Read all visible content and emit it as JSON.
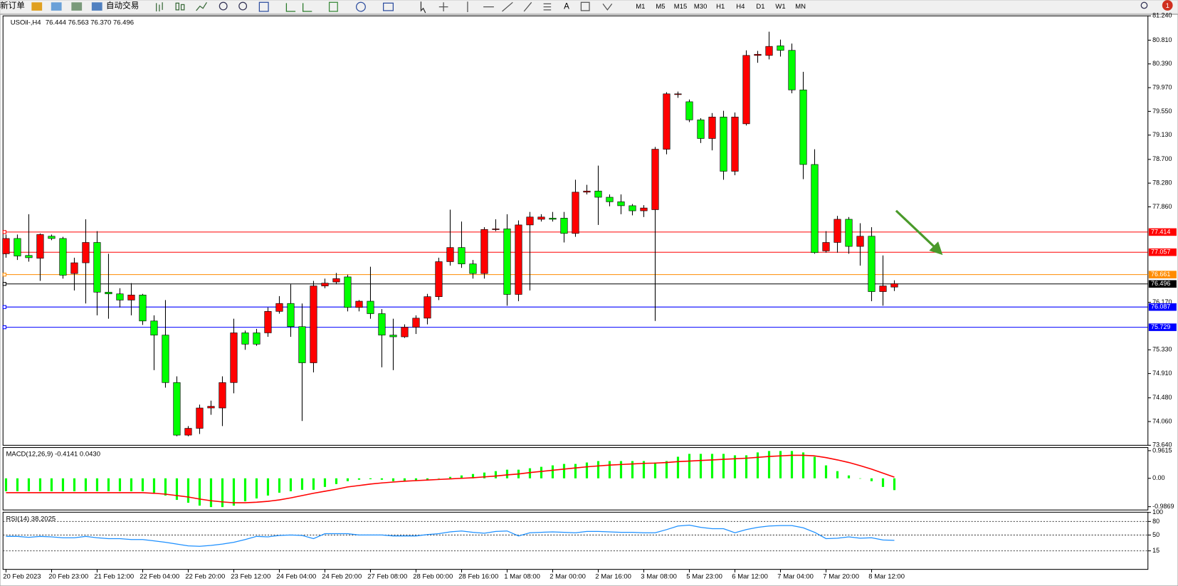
{
  "toolbar": {
    "new_order": "新订单",
    "auto_trade": "自动交易",
    "text_tool": "A",
    "timeframes": [
      "M1",
      "M5",
      "M15",
      "M30",
      "H1",
      "H4",
      "D1",
      "W1",
      "MN"
    ],
    "badge": 1
  },
  "chart_data": [
    {
      "type": "candlestick",
      "title": "USOil-,H4",
      "subtitle": "76.444 76.563 76.370 76.496",
      "categories": [
        "20 Feb 2023",
        null,
        null,
        null,
        "20 Feb 23:00",
        null,
        null,
        null,
        "21 Feb 12:00",
        null,
        null,
        null,
        "22 Feb 04:00",
        null,
        null,
        null,
        "22 Feb 20:00",
        null,
        null,
        null,
        "23 Feb 12:00",
        null,
        null,
        null,
        "24 Feb 04:00",
        null,
        null,
        null,
        "24 Feb 20:00",
        null,
        null,
        null,
        "27 Feb 08:00",
        null,
        null,
        null,
        "28 Feb 00:00",
        null,
        null,
        null,
        "28 Feb 16:00",
        null,
        null,
        null,
        "1 Mar 08:00",
        null,
        null,
        null,
        "2 Mar 00:00",
        null,
        null,
        null,
        "2 Mar 16:00",
        null,
        null,
        null,
        "3 Mar 08:00",
        null,
        null,
        null,
        "5 Mar 23:00",
        null,
        null,
        null,
        "6 Mar 12:00",
        null,
        null,
        null,
        "7 Mar 04:00",
        null,
        null,
        null,
        "7 Mar 20:00",
        null,
        null,
        null,
        "8 Mar 12:00",
        null,
        null
      ],
      "open": [
        77.03,
        77.3,
        77.0,
        76.95,
        77.34,
        77.3,
        76.68,
        76.87,
        77.23,
        76.35,
        76.32,
        76.21,
        76.3,
        75.84,
        75.59,
        74.75,
        73.82,
        73.94,
        74.3,
        74.3,
        74.75,
        75.63,
        75.63,
        75.63,
        76.01,
        76.15,
        75.74,
        75.1,
        76.46,
        76.53,
        76.62,
        76.08,
        76.19,
        75.97,
        75.59,
        75.56,
        75.73,
        75.89,
        76.27,
        76.89,
        77.14,
        76.85,
        76.68,
        77.46,
        77.47,
        76.31,
        77.54,
        77.64,
        77.66,
        77.66,
        77.39,
        78.12,
        78.14,
        78.03,
        77.95,
        77.88,
        77.79,
        77.81,
        78.88,
        79.85,
        79.72,
        79.4,
        79.07,
        79.45,
        78.49,
        79.33,
        80.54,
        80.54,
        80.71,
        80.63,
        79.93,
        78.61,
        77.08,
        77.23,
        77.64,
        77.16,
        77.34,
        76.36,
        76.44
      ],
      "high": [
        77.37,
        77.37,
        77.73,
        77.39,
        77.37,
        77.33,
        76.96,
        77.64,
        77.43,
        77.03,
        76.42,
        76.51,
        76.32,
        75.94,
        76.21,
        74.86,
        73.98,
        74.36,
        74.43,
        74.86,
        75.88,
        75.67,
        75.7,
        76.08,
        76.28,
        76.49,
        76.15,
        76.55,
        76.59,
        76.69,
        76.66,
        76.21,
        76.8,
        76.05,
        75.88,
        75.78,
        75.94,
        76.32,
        76.96,
        77.81,
        77.6,
        76.92,
        77.5,
        77.64,
        77.73,
        77.62,
        77.77,
        77.73,
        77.77,
        77.77,
        78.34,
        78.25,
        78.59,
        78.08,
        78.08,
        77.91,
        77.89,
        78.92,
        79.89,
        79.9,
        79.76,
        79.43,
        79.52,
        79.56,
        79.53,
        80.63,
        80.62,
        80.96,
        80.82,
        80.75,
        80.25,
        78.88,
        77.43,
        77.7,
        77.68,
        77.57,
        77.5,
        77.0,
        76.56
      ],
      "low": [
        76.96,
        76.92,
        76.89,
        76.55,
        77.27,
        76.59,
        76.38,
        76.15,
        75.94,
        75.88,
        76.08,
        75.94,
        75.77,
        74.97,
        74.66,
        73.8,
        73.8,
        73.84,
        74.18,
        73.98,
        74.56,
        75.33,
        75.4,
        75.56,
        75.97,
        75.56,
        74.07,
        74.93,
        76.42,
        76.49,
        76.01,
        76.01,
        75.88,
        75.02,
        74.97,
        75.54,
        75.61,
        75.78,
        76.21,
        76.82,
        76.78,
        76.59,
        76.59,
        77.43,
        76.11,
        76.19,
        76.38,
        77.6,
        77.6,
        77.23,
        77.33,
        78.08,
        77.54,
        77.87,
        77.73,
        77.71,
        77.68,
        75.84,
        78.79,
        79.79,
        79.36,
        78.99,
        78.86,
        78.34,
        78.42,
        79.3,
        80.41,
        80.47,
        80.52,
        79.87,
        78.35,
        77.03,
        77.05,
        77.05,
        77.03,
        76.82,
        76.19,
        76.11,
        76.37
      ],
      "close": [
        77.3,
        76.99,
        76.96,
        77.37,
        77.3,
        76.65,
        76.87,
        77.23,
        76.35,
        76.32,
        76.21,
        76.3,
        75.84,
        75.59,
        74.75,
        73.82,
        73.94,
        74.3,
        74.33,
        74.75,
        75.63,
        75.43,
        75.43,
        76.01,
        76.15,
        75.74,
        75.1,
        76.46,
        76.51,
        76.59,
        76.08,
        76.19,
        75.97,
        75.59,
        75.56,
        75.73,
        75.89,
        76.27,
        76.89,
        77.14,
        76.85,
        76.68,
        77.46,
        77.47,
        76.31,
        77.54,
        77.68,
        77.68,
        77.64,
        77.39,
        78.12,
        78.14,
        78.03,
        77.95,
        77.88,
        77.79,
        77.84,
        78.88,
        79.86,
        79.86,
        79.4,
        79.07,
        79.45,
        78.49,
        79.45,
        80.54,
        80.56,
        80.7,
        80.63,
        79.93,
        78.61,
        77.05,
        77.23,
        77.64,
        77.16,
        77.34,
        76.36,
        76.46,
        76.5
      ],
      "up_color": "#ff0000",
      "down_color": "#00ff00",
      "ylim": [
        73.64,
        81.24
      ],
      "yticks": [
        {
          "value": 81.24,
          "label": "81.240"
        },
        {
          "value": 80.81,
          "label": "80.810"
        },
        {
          "value": 80.39,
          "label": "80.390"
        },
        {
          "value": 79.97,
          "label": "79.970"
        },
        {
          "value": 79.55,
          "label": "79.550"
        },
        {
          "value": 79.13,
          "label": "79.130"
        },
        {
          "value": 78.7,
          "label": "78.700"
        },
        {
          "value": 78.28,
          "label": "78.280"
        },
        {
          "value": 77.86,
          "label": "77.860"
        },
        {
          "value": 76.17,
          "label": "76.170"
        },
        {
          "value": 75.33,
          "label": "75.330"
        },
        {
          "value": 74.91,
          "label": "74.910"
        },
        {
          "value": 74.48,
          "label": "74.480"
        },
        {
          "value": 74.06,
          "label": "74.060"
        },
        {
          "value": 73.64,
          "label": "73.640"
        }
      ],
      "levels": [
        {
          "value": 77.414,
          "color": "#ff0000"
        },
        {
          "value": 77.057,
          "color": "#ff0000"
        },
        {
          "value": 76.661,
          "color": "#ff8c00"
        },
        {
          "value": 76.496,
          "color": "#000000"
        },
        {
          "value": 76.087,
          "color": "#0000ff"
        },
        {
          "value": 75.729,
          "color": "#0000ff"
        }
      ]
    },
    {
      "type": "macd",
      "title": "MACD(12,26,9) -0.4141 0.0430",
      "histogram": [
        -0.45,
        -0.45,
        -0.45,
        -0.45,
        -0.45,
        -0.45,
        -0.45,
        -0.45,
        -0.45,
        -0.45,
        -0.45,
        -0.45,
        -0.45,
        -0.5,
        -0.6,
        -0.75,
        -0.85,
        -0.95,
        -1.0,
        -1.0,
        -0.95,
        -0.8,
        -0.7,
        -0.6,
        -0.5,
        -0.45,
        -0.4,
        -0.4,
        -0.3,
        -0.2,
        -0.1,
        -0.05,
        -0.03,
        -0.05,
        -0.1,
        -0.1,
        -0.08,
        -0.05,
        0.0,
        0.05,
        0.1,
        0.15,
        0.2,
        0.25,
        0.3,
        0.3,
        0.35,
        0.4,
        0.45,
        0.5,
        0.5,
        0.55,
        0.6,
        0.6,
        0.6,
        0.6,
        0.6,
        0.55,
        0.6,
        0.75,
        0.85,
        0.85,
        0.85,
        0.85,
        0.8,
        0.8,
        0.9,
        0.95,
        0.95,
        0.95,
        0.9,
        0.75,
        0.45,
        0.25,
        0.1,
        0.0,
        -0.1,
        -0.3,
        -0.41
      ],
      "signal": [
        -0.5,
        -0.5,
        -0.5,
        -0.5,
        -0.5,
        -0.5,
        -0.5,
        -0.5,
        -0.5,
        -0.5,
        -0.5,
        -0.5,
        -0.5,
        -0.52,
        -0.55,
        -0.6,
        -0.65,
        -0.72,
        -0.78,
        -0.82,
        -0.85,
        -0.85,
        -0.83,
        -0.8,
        -0.75,
        -0.68,
        -0.6,
        -0.52,
        -0.45,
        -0.38,
        -0.3,
        -0.25,
        -0.2,
        -0.16,
        -0.13,
        -0.1,
        -0.08,
        -0.06,
        -0.04,
        -0.02,
        0.0,
        0.02,
        0.05,
        0.08,
        0.12,
        0.15,
        0.2,
        0.24,
        0.28,
        0.32,
        0.36,
        0.4,
        0.43,
        0.46,
        0.48,
        0.5,
        0.52,
        0.53,
        0.55,
        0.58,
        0.6,
        0.62,
        0.64,
        0.66,
        0.68,
        0.7,
        0.73,
        0.76,
        0.78,
        0.8,
        0.8,
        0.78,
        0.72,
        0.64,
        0.55,
        0.44,
        0.32,
        0.18,
        0.04
      ],
      "histogram_color": "#00ff00",
      "signal_color": "#ff0000",
      "ylim": [
        -1.1,
        1.07
      ],
      "yticks": [
        0.9615,
        {
          "value": 0,
          "label": "0.00"
        },
        -0.9869
      ]
    },
    {
      "type": "line",
      "title": "RSI(14) 38.2025",
      "values": [
        47,
        47,
        45,
        47,
        46,
        44,
        44,
        47,
        44,
        42,
        42,
        40,
        40,
        37,
        34,
        30,
        26,
        25,
        27,
        30,
        34,
        40,
        47,
        46,
        49,
        50,
        49,
        42,
        53,
        53,
        53,
        50,
        50,
        50,
        48,
        48,
        48,
        51,
        53,
        57,
        59,
        56,
        54,
        58,
        59,
        48,
        55,
        56,
        57,
        56,
        55,
        58,
        58,
        57,
        56,
        56,
        55,
        55,
        62,
        70,
        72,
        67,
        64,
        64,
        55,
        62,
        67,
        70,
        71,
        71,
        66,
        56,
        42,
        43,
        46,
        43,
        44,
        39,
        38.2025
      ],
      "color": "#1e90ff",
      "ylim": [
        -26,
        100.5
      ],
      "yticks": [
        100,
        80,
        50,
        15
      ],
      "levels": [
        80,
        50,
        15
      ]
    }
  ]
}
